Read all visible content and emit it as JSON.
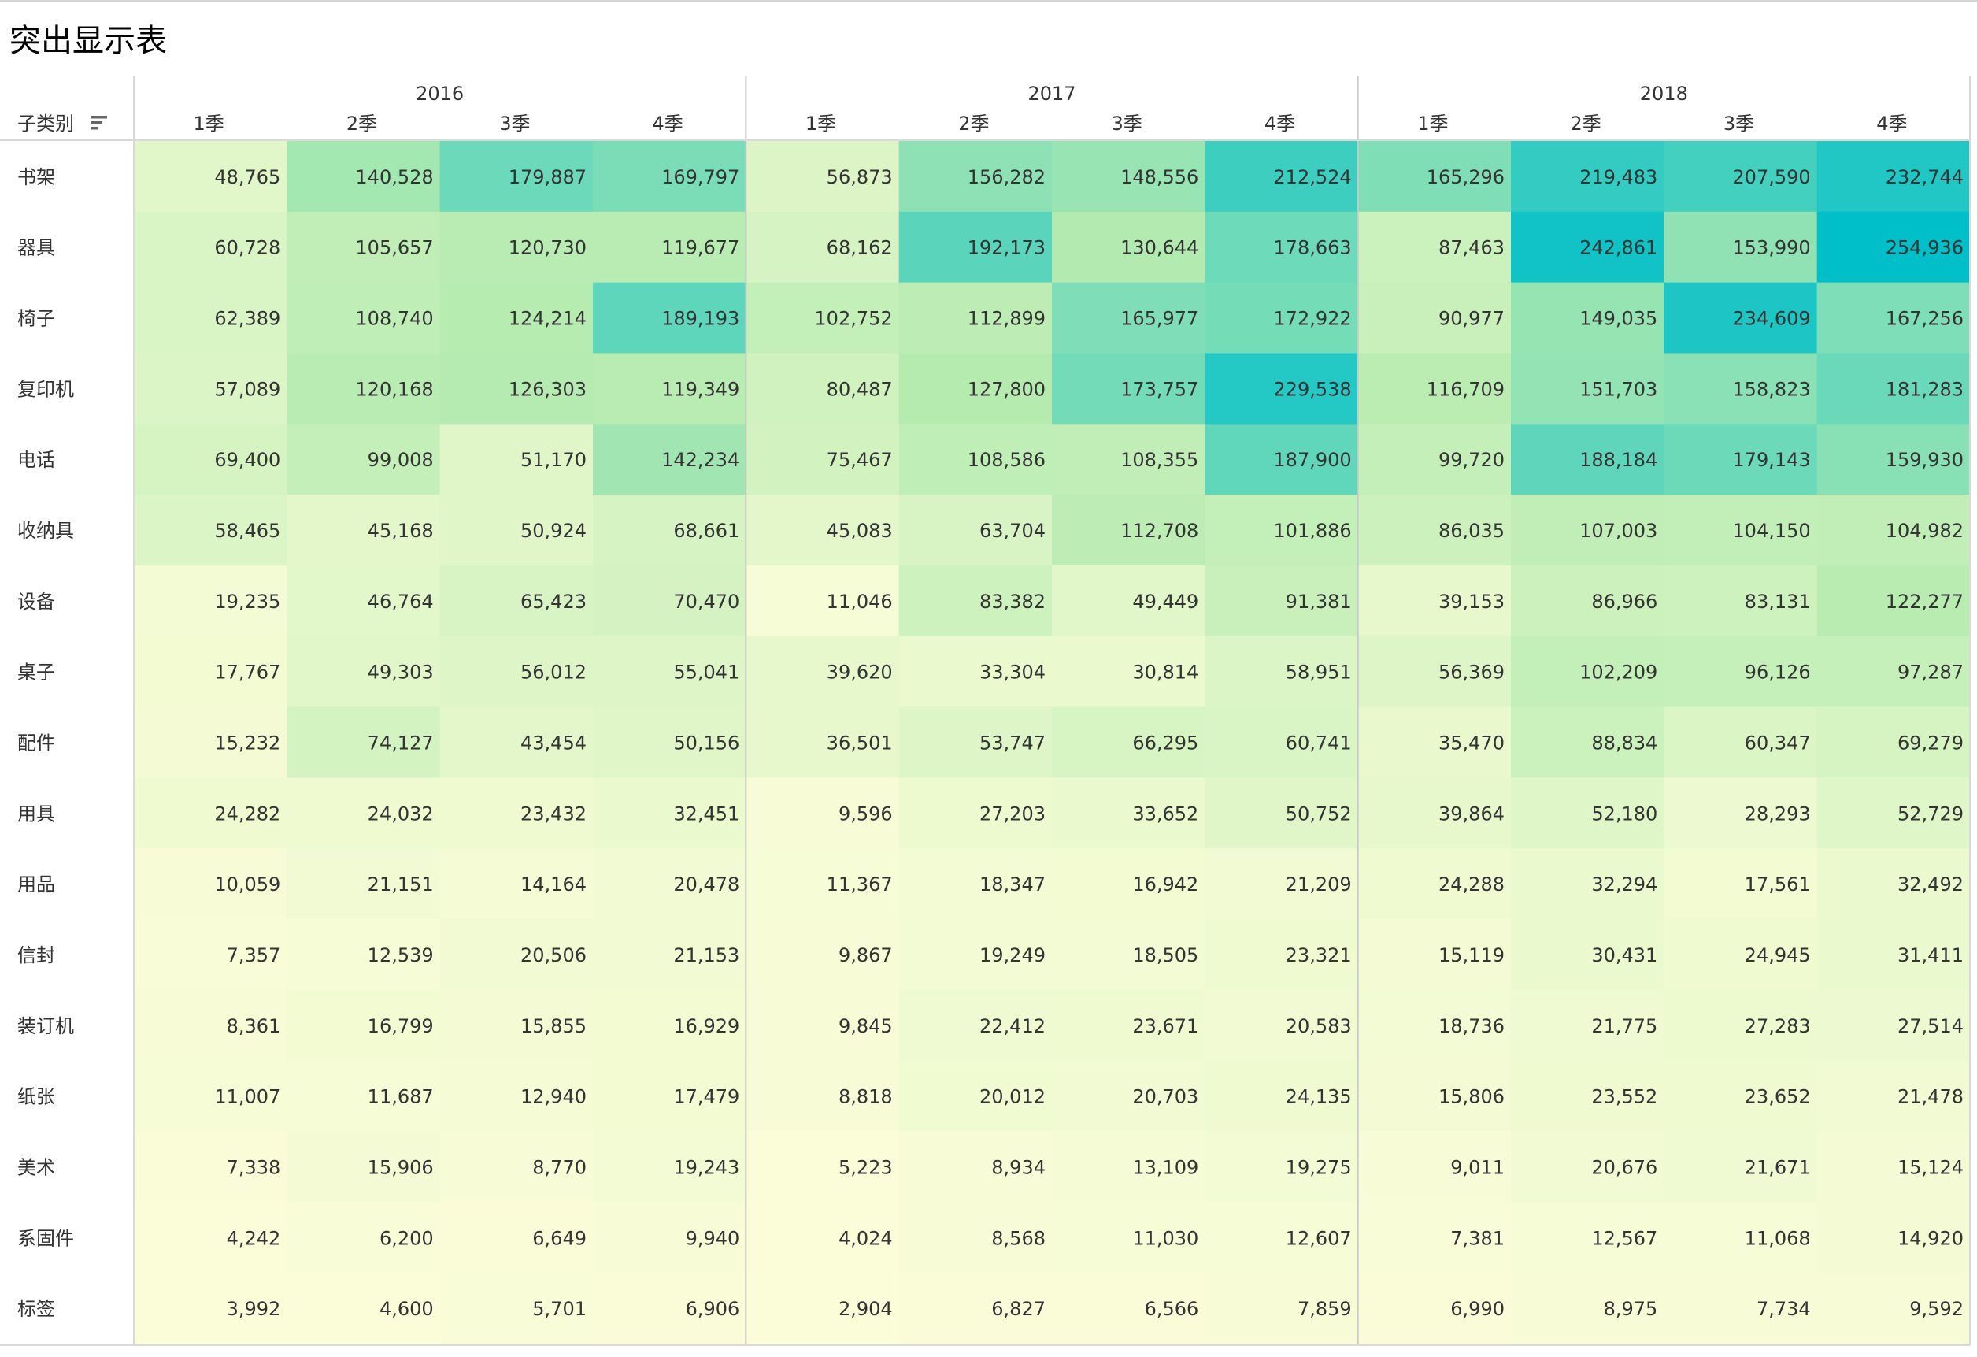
{
  "title": "突出显示表",
  "sort_icon": "sort-descending-icon",
  "chart_data": {
    "type": "heatmap",
    "row_dimension": "子类别",
    "years": [
      "2016",
      "2017",
      "2018"
    ],
    "quarters": [
      "1季",
      "2季",
      "3季",
      "4季"
    ],
    "color_scale": {
      "low": "#fbfdd8",
      "mid": "#b4ebaf",
      "high": "#00bfc9",
      "min": 2904,
      "max": 254936
    },
    "rows": [
      {
        "label": "书架",
        "values": [
          48765,
          140528,
          179887,
          169797,
          56873,
          156282,
          148556,
          212524,
          165296,
          219483,
          207590,
          232744
        ]
      },
      {
        "label": "器具",
        "values": [
          60728,
          105657,
          120730,
          119677,
          68162,
          192173,
          130644,
          178663,
          87463,
          242861,
          153990,
          254936
        ]
      },
      {
        "label": "椅子",
        "values": [
          62389,
          108740,
          124214,
          189193,
          102752,
          112899,
          165977,
          172922,
          90977,
          149035,
          234609,
          167256
        ]
      },
      {
        "label": "复印机",
        "values": [
          57089,
          120168,
          126303,
          119349,
          80487,
          127800,
          173757,
          229538,
          116709,
          151703,
          158823,
          181283
        ]
      },
      {
        "label": "电话",
        "values": [
          69400,
          99008,
          51170,
          142234,
          75467,
          108586,
          108355,
          187900,
          99720,
          188184,
          179143,
          159930
        ]
      },
      {
        "label": "收纳具",
        "values": [
          58465,
          45168,
          50924,
          68661,
          45083,
          63704,
          112708,
          101886,
          86035,
          107003,
          104150,
          104982
        ]
      },
      {
        "label": "设备",
        "values": [
          19235,
          46764,
          65423,
          70470,
          11046,
          83382,
          49449,
          91381,
          39153,
          86966,
          83131,
          122277
        ]
      },
      {
        "label": "桌子",
        "values": [
          17767,
          49303,
          56012,
          55041,
          39620,
          33304,
          30814,
          58951,
          56369,
          102209,
          96126,
          97287
        ]
      },
      {
        "label": "配件",
        "values": [
          15232,
          74127,
          43454,
          50156,
          36501,
          53747,
          66295,
          60741,
          35470,
          88834,
          60347,
          69279
        ]
      },
      {
        "label": "用具",
        "values": [
          24282,
          24032,
          23432,
          32451,
          9596,
          27203,
          33652,
          50752,
          39864,
          52180,
          28293,
          52729
        ]
      },
      {
        "label": "用品",
        "values": [
          10059,
          21151,
          14164,
          20478,
          11367,
          18347,
          16942,
          21209,
          24288,
          32294,
          17561,
          32492
        ]
      },
      {
        "label": "信封",
        "values": [
          7357,
          12539,
          20506,
          21153,
          9867,
          19249,
          18505,
          23321,
          15119,
          30431,
          24945,
          31411
        ]
      },
      {
        "label": "装订机",
        "values": [
          8361,
          16799,
          15855,
          16929,
          9845,
          22412,
          23671,
          20583,
          18736,
          21775,
          27283,
          27514
        ]
      },
      {
        "label": "纸张",
        "values": [
          11007,
          11687,
          12940,
          17479,
          8818,
          20012,
          20703,
          24135,
          15806,
          23552,
          23652,
          21478
        ]
      },
      {
        "label": "美术",
        "values": [
          7338,
          15906,
          8770,
          19243,
          5223,
          8934,
          13109,
          19275,
          9011,
          20676,
          21671,
          15124
        ]
      },
      {
        "label": "系固件",
        "values": [
          4242,
          6200,
          6649,
          9940,
          4024,
          8568,
          11030,
          12607,
          7381,
          12567,
          11068,
          14920
        ]
      },
      {
        "label": "标签",
        "values": [
          3992,
          4600,
          5701,
          6906,
          2904,
          6827,
          6566,
          7859,
          6990,
          8975,
          7734,
          9592
        ]
      }
    ]
  }
}
